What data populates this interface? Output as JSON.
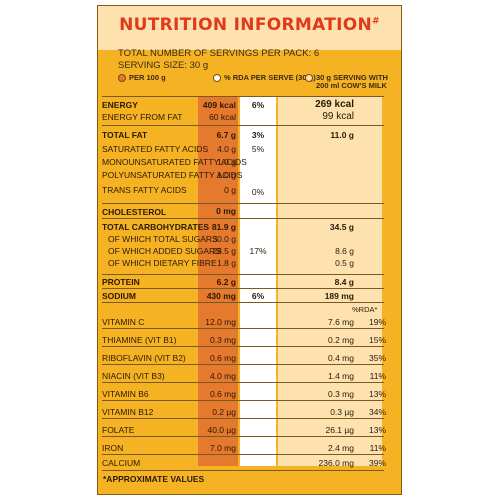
{
  "title": "NUTRITION INFORMATION",
  "title_mark": "#",
  "servings_per_pack": "TOTAL NUMBER OF SERVINGS PER PACK: 6",
  "serving_size": "SERVING SIZE: 30 g",
  "legend": {
    "per100": "PER 100 g",
    "rda": "% RDA PER SERVE (30 g)",
    "milk_line1": "30 g SERVING WITH",
    "milk_line2": "200 ml COW'S MILK"
  },
  "colors": {
    "panel": "#f5b324",
    "title": "#e03a1b",
    "per100_column": "#e5792d",
    "rda_column": "#ffffff",
    "milk_column": "#fde2b0"
  },
  "rows": {
    "energy": {
      "label": "ENERGY",
      "per100": "409 kcal",
      "rda": "6%",
      "milk": "269 kcal"
    },
    "energy_fat": {
      "label": "ENERGY FROM FAT",
      "per100": "60 kcal",
      "milk": "99 kcal"
    },
    "total_fat": {
      "label": "TOTAL FAT",
      "per100": "6.7 g",
      "rda": "3%",
      "milk": "11.0 g"
    },
    "sat_fat": {
      "label": "SATURATED FATTY ACIDS",
      "per100": "4.0 g",
      "rda": "5%"
    },
    "mono_fat": {
      "label": "MONOUNSATURATED FATTY ACIDS",
      "per100": "1.0 g"
    },
    "poly_fat": {
      "label": "POLYUNSATURATED FATTY ACIDS",
      "per100": "1.0 g"
    },
    "trans_fat": {
      "label": "TRANS FATTY ACIDS",
      "per100": "0 g",
      "rda": "0%"
    },
    "cholesterol": {
      "label": "CHOLESTEROL",
      "per100": "0 mg"
    },
    "carbs": {
      "label": "TOTAL CARBOHYDRATES",
      "per100": "81.9 g",
      "milk": "34.5 g"
    },
    "sugars": {
      "label": "OF WHICH TOTAL SUGARS",
      "per100": "30.0 g"
    },
    "added_sugars": {
      "label": "OF WHICH ADDED SUGARS",
      "per100": "28.5 g",
      "rda": "17%",
      "milk": "8.6 g"
    },
    "fibre": {
      "label": "OF WHICH DIETARY FIBRE",
      "per100": "1.8 g",
      "milk": "0.5 g"
    },
    "protein": {
      "label": "PROTEIN",
      "per100": "6.2 g",
      "milk": "8.4 g"
    },
    "sodium": {
      "label": "SODIUM",
      "per100": "430 mg",
      "rda": "6%",
      "milk": "189 mg"
    }
  },
  "rda_header": "%RDA*",
  "vitamins": [
    {
      "label": "VITAMIN C",
      "per100": "12.0 mg",
      "milk": "7.6 mg",
      "rda": "19%"
    },
    {
      "label": "THIAMINE (VIT B1)",
      "per100": "0.3 mg",
      "milk": "0.2 mg",
      "rda": "15%"
    },
    {
      "label": "RIBOFLAVIN (VIT B2)",
      "per100": "0.6 mg",
      "milk": "0.4 mg",
      "rda": "35%"
    },
    {
      "label": "NIACIN (VIT B3)",
      "per100": "4.0 mg",
      "milk": "1.4 mg",
      "rda": "11%"
    },
    {
      "label": "VITAMIN B6",
      "per100": "0.6 mg",
      "milk": "0.3 mg",
      "rda": "13%"
    },
    {
      "label": "VITAMIN B12",
      "per100": "0.2 µg",
      "milk": "0.3 µg",
      "rda": "34%"
    },
    {
      "label": "FOLATE",
      "per100": "40.0 µg",
      "milk": "26.1 µg",
      "rda": "13%"
    },
    {
      "label": "IRON",
      "per100": "7.0 mg",
      "milk": "2.4 mg",
      "rda": "11%"
    },
    {
      "label": "CALCIUM",
      "per100": "",
      "milk": "236.0 mg",
      "rda": "39%"
    }
  ],
  "footnote": "*APPROXIMATE VALUES"
}
